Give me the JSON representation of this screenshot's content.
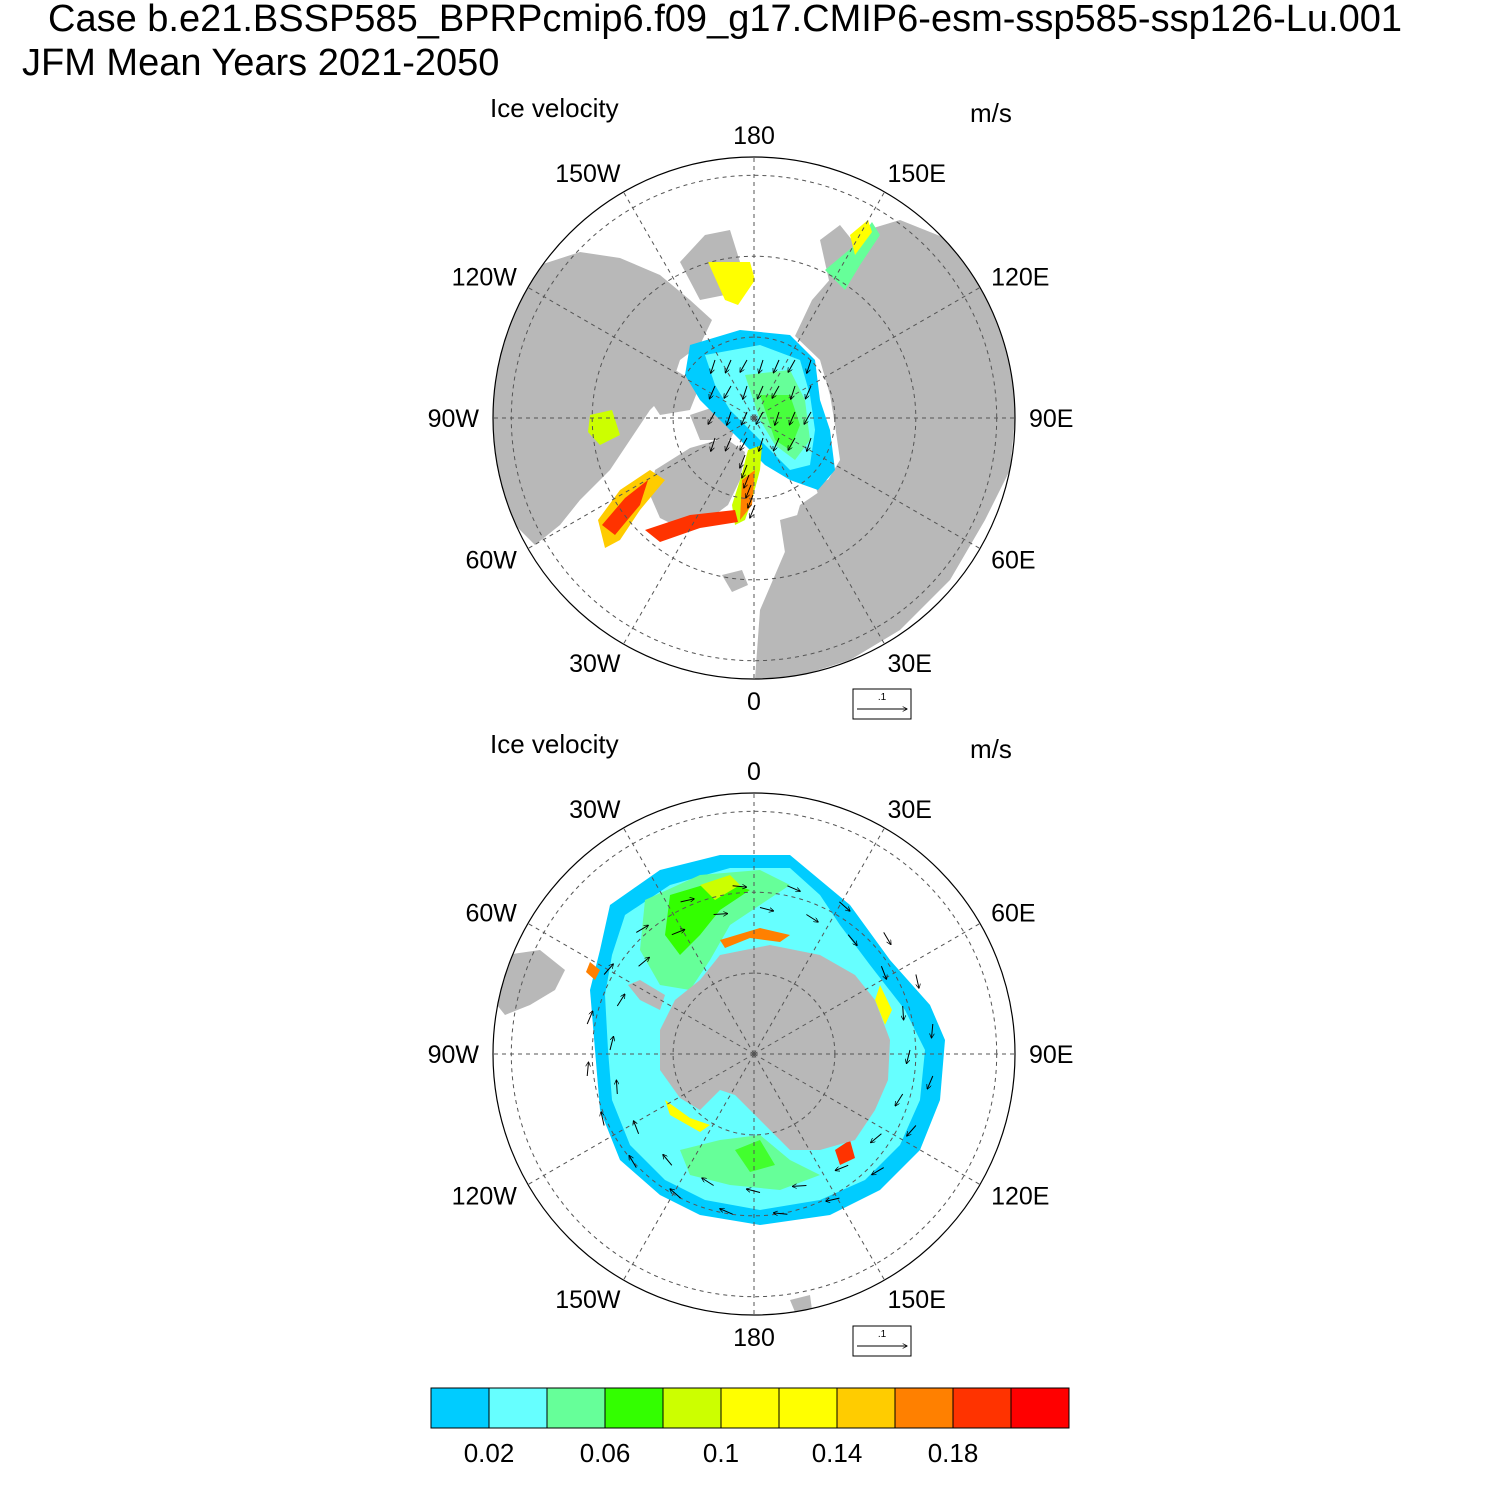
{
  "title": {
    "line1": "Case b.e21.BSSP585_BPRPcmip6.f09_g17.CMIP6-esm-ssp585-ssp126-Lu.001",
    "line2": "JFM Mean   Years 2021-2050"
  },
  "panels": [
    {
      "id": "nh",
      "hemisphere": "north",
      "title": "Ice velocity",
      "units": "m/s",
      "lon_labels": [
        {
          "lon": 0,
          "text": "0"
        },
        {
          "lon": 30,
          "text": "30E"
        },
        {
          "lon": 60,
          "text": "60E"
        },
        {
          "lon": 90,
          "text": "90E"
        },
        {
          "lon": 120,
          "text": "120E"
        },
        {
          "lon": 150,
          "text": "150E"
        },
        {
          "lon": 180,
          "text": "180"
        },
        {
          "lon": -150,
          "text": "150W"
        },
        {
          "lon": -120,
          "text": "120W"
        },
        {
          "lon": -90,
          "text": "90W"
        },
        {
          "lon": -60,
          "text": "60W"
        },
        {
          "lon": -30,
          "text": "30W"
        }
      ],
      "reference_vector": ".1"
    },
    {
      "id": "sh",
      "hemisphere": "south",
      "title": "Ice velocity",
      "units": "m/s",
      "lon_labels": [
        {
          "lon": 0,
          "text": "0"
        },
        {
          "lon": 30,
          "text": "30E"
        },
        {
          "lon": 60,
          "text": "60E"
        },
        {
          "lon": 90,
          "text": "90E"
        },
        {
          "lon": 120,
          "text": "120E"
        },
        {
          "lon": 150,
          "text": "150E"
        },
        {
          "lon": 180,
          "text": "180"
        },
        {
          "lon": -150,
          "text": "150W"
        },
        {
          "lon": -120,
          "text": "120W"
        },
        {
          "lon": -90,
          "text": "90W"
        },
        {
          "lon": -60,
          "text": "60W"
        },
        {
          "lon": -30,
          "text": "30W"
        }
      ],
      "reference_vector": ".1"
    }
  ],
  "colorbar": {
    "colors": [
      "#00ccff",
      "#66ffff",
      "#66ff99",
      "#33ff00",
      "#ccff00",
      "#ffff00",
      "#ffff00",
      "#ffcc00",
      "#ff8000",
      "#ff3300",
      "#ff0000"
    ],
    "labels": [
      {
        "after_box": 1,
        "text": "0.02"
      },
      {
        "after_box": 3,
        "text": "0.06"
      },
      {
        "after_box": 5,
        "text": "0.1"
      },
      {
        "after_box": 7,
        "text": "0.14"
      },
      {
        "after_box": 9,
        "text": "0.18"
      }
    ]
  },
  "land_color": "#b8b8b8"
}
